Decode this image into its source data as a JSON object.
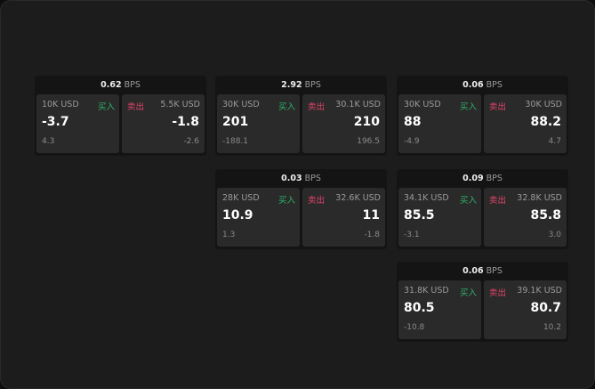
{
  "unit": "BPS",
  "buy_label": "买入",
  "sell_label": "卖出",
  "colors": {
    "buy": "#2fb36a",
    "sell": "#e0446a"
  },
  "cards": [
    {
      "spread": "0.62",
      "bid_size": "10K USD",
      "bid": "-3.7",
      "bid_chg": "4.3",
      "ask_size": "5.5K USD",
      "ask": "-1.8",
      "ask_chg": "-2.6"
    },
    {
      "spread": "2.92",
      "bid_size": "30K USD",
      "bid": "201",
      "bid_chg": "-188.1",
      "ask_size": "30.1K USD",
      "ask": "210",
      "ask_chg": "196.5"
    },
    {
      "spread": "0.06",
      "bid_size": "30K USD",
      "bid": "88",
      "bid_chg": "-4.9",
      "ask_size": "30K USD",
      "ask": "88.2",
      "ask_chg": "4.7"
    },
    {
      "spread": "0.03",
      "bid_size": "28K USD",
      "bid": "10.9",
      "bid_chg": "1.3",
      "ask_size": "32.6K USD",
      "ask": "11",
      "ask_chg": "-1.8"
    },
    {
      "spread": "0.09",
      "bid_size": "34.1K USD",
      "bid": "85.5",
      "bid_chg": "-3.1",
      "ask_size": "32.8K USD",
      "ask": "85.8",
      "ask_chg": "3.0"
    },
    {
      "spread": "0.06",
      "bid_size": "31.8K USD",
      "bid": "80.5",
      "bid_chg": "-10.8",
      "ask_size": "39.1K USD",
      "ask": "80.7",
      "ask_chg": "10.2"
    }
  ]
}
